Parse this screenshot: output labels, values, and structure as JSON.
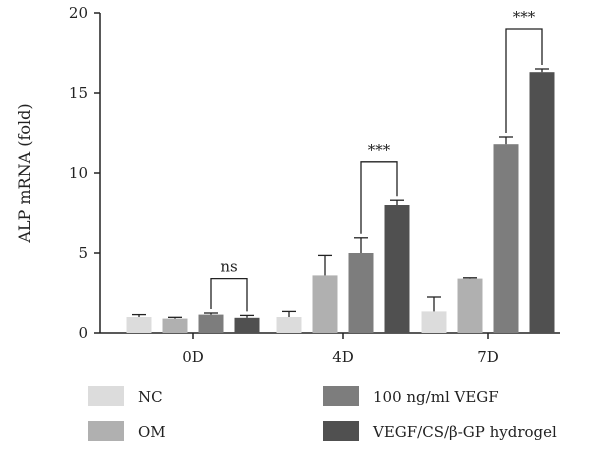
{
  "chart_data": {
    "type": "bar",
    "ylabel": "ALP mRNA (fold)",
    "ylim": [
      0,
      20
    ],
    "yticks": [
      0,
      5,
      10,
      15,
      20
    ],
    "categories": [
      "0D",
      "4D",
      "7D"
    ],
    "series": [
      {
        "name": "NC",
        "color": "#dcdcdc",
        "values": [
          1.0,
          1.0,
          1.35
        ],
        "errors": [
          0.15,
          0.35,
          0.9
        ]
      },
      {
        "name": "OM",
        "color": "#b0b0b0",
        "values": [
          0.9,
          3.6,
          3.4
        ],
        "errors": [
          0.08,
          1.25,
          0.05
        ]
      },
      {
        "name": "100 ng/ml VEGF",
        "color": "#7d7d7d",
        "values": [
          1.15,
          5.0,
          11.8
        ],
        "errors": [
          0.1,
          0.95,
          0.45
        ]
      },
      {
        "name": "VEGF/CS/β-GP hydrogel",
        "color": "#505050",
        "values": [
          0.95,
          8.0,
          16.3
        ],
        "errors": [
          0.15,
          0.3,
          0.2
        ]
      }
    ],
    "significance": [
      {
        "category": 0,
        "from_series": 2,
        "to_series": 3,
        "label": "ns",
        "y_bracket": 3.4
      },
      {
        "category": 1,
        "from_series": 2,
        "to_series": 3,
        "label": "***",
        "y_bracket": 10.7
      },
      {
        "category": 2,
        "from_series": 2,
        "to_series": 3,
        "label": "***",
        "y_bracket": 19.0
      }
    ],
    "legend_placement": "bottom",
    "grid": false
  }
}
